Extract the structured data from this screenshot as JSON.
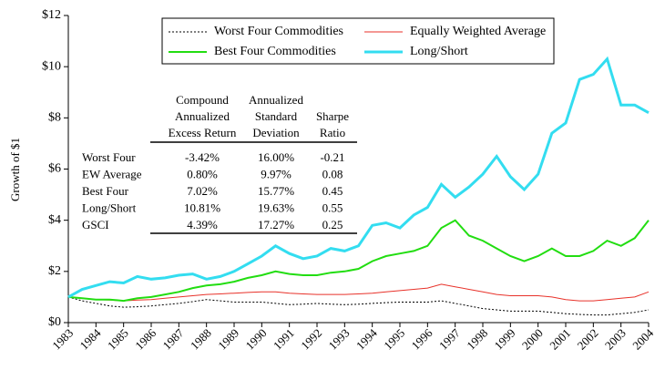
{
  "chart_data": {
    "type": "line",
    "y_label": "Growth of $1",
    "x": [
      1983,
      1983.5,
      1984,
      1984.5,
      1985,
      1985.5,
      1986,
      1986.5,
      1987,
      1987.5,
      1988,
      1988.5,
      1989,
      1989.5,
      1990,
      1990.5,
      1991,
      1991.5,
      1992,
      1992.5,
      1993,
      1993.5,
      1994,
      1994.5,
      1995,
      1995.5,
      1996,
      1996.5,
      1997,
      1997.5,
      1998,
      1998.5,
      1999,
      1999.5,
      2000,
      2000.5,
      2001,
      2001.5,
      2002,
      2002.5,
      2003,
      2003.5,
      2004
    ],
    "xlim": [
      1983,
      2004
    ],
    "xticks": [
      1983,
      1984,
      1985,
      1986,
      1987,
      1988,
      1989,
      1990,
      1991,
      1992,
      1993,
      1994,
      1995,
      1996,
      1997,
      1998,
      1999,
      2000,
      2001,
      2002,
      2003,
      2004
    ],
    "ylim": [
      0,
      12
    ],
    "yticks": [
      {
        "value": 0,
        "label": "$0"
      },
      {
        "value": 2,
        "label": "$2"
      },
      {
        "value": 4,
        "label": "$4"
      },
      {
        "value": 6,
        "label": "$6"
      },
      {
        "value": 8,
        "label": "$8"
      },
      {
        "value": 10,
        "label": "$10"
      },
      {
        "value": 12,
        "label": "$12"
      }
    ],
    "series": [
      {
        "name": "Worst Four Commodities",
        "color": "#000000",
        "dash": "2,2",
        "values": [
          1.0,
          0.85,
          0.75,
          0.65,
          0.6,
          0.62,
          0.65,
          0.7,
          0.75,
          0.82,
          0.9,
          0.85,
          0.8,
          0.8,
          0.8,
          0.75,
          0.7,
          0.72,
          0.75,
          0.72,
          0.7,
          0.72,
          0.75,
          0.78,
          0.8,
          0.8,
          0.8,
          0.85,
          0.75,
          0.65,
          0.55,
          0.5,
          0.45,
          0.45,
          0.45,
          0.4,
          0.35,
          0.32,
          0.3,
          0.3,
          0.35,
          0.4,
          0.5
        ]
      },
      {
        "name": "Equally Weighted Average",
        "color": "#e8322a",
        "values": [
          1.0,
          0.95,
          0.9,
          0.88,
          0.85,
          0.88,
          0.9,
          0.95,
          1.0,
          1.05,
          1.1,
          1.12,
          1.15,
          1.18,
          1.2,
          1.2,
          1.15,
          1.12,
          1.1,
          1.1,
          1.1,
          1.12,
          1.15,
          1.2,
          1.25,
          1.3,
          1.35,
          1.5,
          1.4,
          1.3,
          1.2,
          1.1,
          1.05,
          1.05,
          1.05,
          1.0,
          0.9,
          0.85,
          0.85,
          0.9,
          0.95,
          1.0,
          1.2
        ]
      },
      {
        "name": "Best Four Commodities",
        "color": "#22dd11",
        "values": [
          1.0,
          0.95,
          0.9,
          0.9,
          0.85,
          0.95,
          1.0,
          1.1,
          1.2,
          1.35,
          1.45,
          1.5,
          1.6,
          1.75,
          1.85,
          2.0,
          1.9,
          1.85,
          1.85,
          1.95,
          2.0,
          2.1,
          2.4,
          2.6,
          2.7,
          2.8,
          3.0,
          3.7,
          4.0,
          3.4,
          3.2,
          2.9,
          2.6,
          2.4,
          2.6,
          2.9,
          2.6,
          2.6,
          2.8,
          3.2,
          3.0,
          3.3,
          4.0
        ]
      },
      {
        "name": "Long/Short",
        "color": "#33ddf0",
        "values": [
          1.0,
          1.3,
          1.45,
          1.6,
          1.55,
          1.8,
          1.7,
          1.75,
          1.85,
          1.9,
          1.7,
          1.8,
          2.0,
          2.3,
          2.6,
          3.0,
          2.7,
          2.5,
          2.6,
          2.9,
          2.8,
          3.0,
          3.8,
          3.9,
          3.7,
          4.2,
          4.5,
          5.4,
          4.9,
          5.3,
          5.8,
          6.5,
          5.7,
          5.2,
          5.8,
          7.4,
          7.8,
          9.5,
          9.7,
          10.3,
          8.5,
          8.5,
          8.2
        ]
      }
    ],
    "table": {
      "columns": [
        [
          "Compound",
          "Annualized",
          "Excess Return"
        ],
        [
          "Annualized",
          "Standard",
          "Deviation"
        ],
        [
          "Sharpe",
          "Ratio"
        ]
      ],
      "rows": [
        [
          "Worst Four",
          "-3.42%",
          "16.00%",
          "-0.21"
        ],
        [
          "EW Average",
          "0.80%",
          "9.97%",
          "0.08"
        ],
        [
          "Best Four",
          "7.02%",
          "15.77%",
          "0.45"
        ],
        [
          "Long/Short",
          "10.81%",
          "19.63%",
          "0.55"
        ],
        [
          "GSCI",
          "4.39%",
          "17.27%",
          "0.25"
        ]
      ]
    }
  }
}
